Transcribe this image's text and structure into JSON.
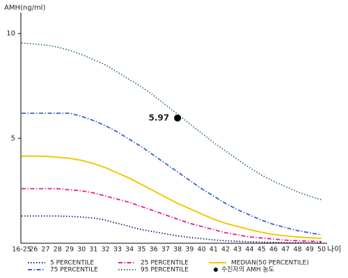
{
  "chart_data": {
    "type": "line",
    "y_label": "AMH(ng/ml)",
    "x_label": "나이",
    "categories": [
      "16-25",
      "26",
      "27",
      "28",
      "29",
      "30",
      "31",
      "32",
      "33",
      "34",
      "35",
      "36",
      "37",
      "38",
      "39",
      "40",
      "41",
      "42",
      "43",
      "44",
      "45",
      "46",
      "47",
      "48",
      "49",
      "50"
    ],
    "ylim": [
      0,
      11
    ],
    "yticks": [
      5,
      10
    ],
    "grid": false,
    "series": [
      {
        "name": "5 PERCENTILE",
        "color": "#1a1a6e",
        "dash": "dot",
        "values": [
          1.3,
          1.3,
          1.3,
          1.3,
          1.28,
          1.25,
          1.2,
          1.1,
          0.95,
          0.8,
          0.65,
          0.55,
          0.45,
          0.35,
          0.28,
          0.22,
          0.16,
          0.12,
          0.09,
          0.07,
          0.05,
          0.04,
          0.03,
          0.03,
          0.02,
          0.02
        ]
      },
      {
        "name": "25 PERCENTILE",
        "color": "#e0208a",
        "dash": "dashdot",
        "values": [
          2.6,
          2.6,
          2.6,
          2.6,
          2.55,
          2.5,
          2.4,
          2.25,
          2.1,
          1.95,
          1.75,
          1.55,
          1.35,
          1.15,
          0.95,
          0.8,
          0.65,
          0.5,
          0.4,
          0.3,
          0.25,
          0.2,
          0.15,
          0.12,
          0.1,
          0.08
        ]
      },
      {
        "name": "MEDIAN(50 PERCENTILE)",
        "color": "#f2c800",
        "dash": "solid",
        "values": [
          4.15,
          4.15,
          4.15,
          4.1,
          4.05,
          3.95,
          3.8,
          3.6,
          3.35,
          3.1,
          2.8,
          2.5,
          2.2,
          1.9,
          1.65,
          1.4,
          1.15,
          0.95,
          0.8,
          0.65,
          0.52,
          0.42,
          0.35,
          0.3,
          0.26,
          0.23
        ]
      },
      {
        "name": "75 PERCENTILE",
        "color": "#3a5fcd",
        "dash": "dashdot",
        "values": [
          6.2,
          6.2,
          6.2,
          6.2,
          6.2,
          6.05,
          5.85,
          5.6,
          5.3,
          4.95,
          4.6,
          4.2,
          3.8,
          3.4,
          3.0,
          2.6,
          2.25,
          1.9,
          1.6,
          1.35,
          1.1,
          0.9,
          0.75,
          0.6,
          0.5,
          0.4
        ]
      },
      {
        "name": "95 PERCENTILE",
        "color": "#2e7d32",
        "dash": "dot",
        "values": [
          9.55,
          9.5,
          9.45,
          9.35,
          9.2,
          9.0,
          8.75,
          8.5,
          8.15,
          7.8,
          7.45,
          7.05,
          6.6,
          6.15,
          5.7,
          5.25,
          4.8,
          4.4,
          4.0,
          3.6,
          3.25,
          2.95,
          2.7,
          2.45,
          2.25,
          2.07
        ]
      }
    ],
    "points": [
      {
        "name": "수진자의 AMH 농도",
        "color": "#000000",
        "x": "38",
        "value": 5.97,
        "value_label": "5.97"
      }
    ]
  }
}
